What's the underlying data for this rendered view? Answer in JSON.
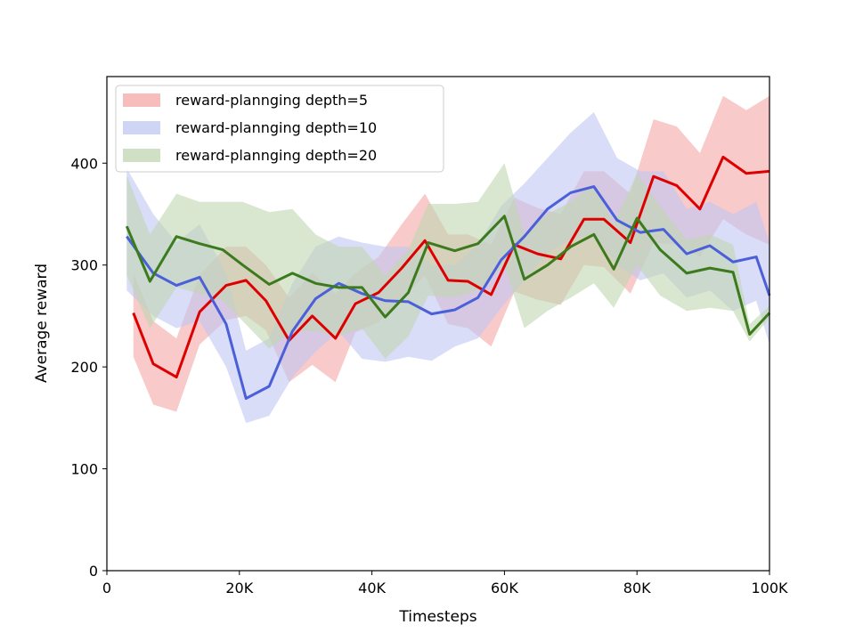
{
  "chart_data": {
    "type": "line",
    "title": "",
    "xlabel": "Timesteps",
    "ylabel": "Average reward",
    "xlim": [
      0,
      100000
    ],
    "ylim": [
      0,
      485
    ],
    "x_ticks": [
      {
        "value": 0,
        "label": "0"
      },
      {
        "value": 20000,
        "label": "20K"
      },
      {
        "value": 40000,
        "label": "40K"
      },
      {
        "value": 60000,
        "label": "60K"
      },
      {
        "value": 80000,
        "label": "80K"
      },
      {
        "value": 100000,
        "label": "100K"
      }
    ],
    "y_ticks": [
      {
        "value": 0,
        "label": "0"
      },
      {
        "value": 100,
        "label": "100"
      },
      {
        "value": 200,
        "label": "200"
      },
      {
        "value": 300,
        "label": "300"
      },
      {
        "value": 400,
        "label": "400"
      }
    ],
    "grid": false,
    "legend_position": "top-left",
    "series": [
      {
        "name": "reward-plannging depth=5",
        "color": "#dd0000",
        "band_color": "#f4a6a6",
        "x": [
          4000,
          7000,
          10500,
          14000,
          18000,
          21000,
          24000,
          27500,
          31000,
          34500,
          37500,
          41000,
          44500,
          48000,
          51500,
          54500,
          58000,
          61500,
          65000,
          68500,
          72000,
          75000,
          79000,
          82500,
          86000,
          89500,
          93000,
          96500,
          100000
        ],
        "y": [
          253,
          203,
          190,
          254,
          280,
          285,
          265,
          226,
          250,
          228,
          262,
          273,
          297,
          324,
          285,
          284,
          271,
          320,
          311,
          306,
          345,
          345,
          322,
          387,
          378,
          355,
          406,
          390,
          392
        ],
        "lower": [
          210,
          163,
          156,
          222,
          246,
          250,
          236,
          185,
          202,
          185,
          234,
          244,
          266,
          290,
          242,
          238,
          220,
          274,
          266,
          261,
          300,
          298,
          272,
          322,
          320,
          308,
          345,
          330,
          320
        ],
        "upper": [
          292,
          245,
          228,
          290,
          318,
          318,
          300,
          268,
          292,
          272,
          292,
          308,
          340,
          370,
          330,
          330,
          320,
          366,
          356,
          350,
          392,
          392,
          370,
          443,
          436,
          410,
          466,
          452,
          466
        ]
      },
      {
        "name": "reward-plannging depth=10",
        "color": "#4a5fd8",
        "band_color": "#bfc7f2",
        "x": [
          3000,
          7000,
          10500,
          14000,
          18000,
          21000,
          24500,
          28000,
          31500,
          35000,
          38500,
          42000,
          45500,
          49000,
          52500,
          56000,
          59500,
          63000,
          66500,
          70000,
          73500,
          77000,
          80500,
          84000,
          87500,
          91000,
          94500,
          98000,
          100000
        ],
        "y": [
          328,
          292,
          280,
          288,
          242,
          169,
          181,
          235,
          267,
          282,
          272,
          265,
          264,
          252,
          256,
          268,
          305,
          328,
          355,
          371,
          377,
          344,
          332,
          335,
          311,
          319,
          303,
          308,
          270
        ],
        "lower": [
          275,
          250,
          238,
          245,
          200,
          145,
          152,
          190,
          215,
          235,
          208,
          205,
          210,
          206,
          220,
          228,
          258,
          285,
          312,
          325,
          330,
          300,
          285,
          292,
          268,
          275,
          255,
          265,
          222
        ],
        "upper": [
          395,
          350,
          322,
          340,
          292,
          216,
          228,
          282,
          318,
          328,
          322,
          318,
          318,
          300,
          300,
          320,
          358,
          380,
          405,
          430,
          450,
          405,
          392,
          392,
          355,
          362,
          350,
          362,
          322
        ]
      },
      {
        "name": "reward-plannging depth=20",
        "color": "#3c7a1e",
        "band_color": "#c0d6b0",
        "x": [
          3000,
          6500,
          10500,
          14000,
          17500,
          20500,
          24500,
          28000,
          31500,
          35000,
          38500,
          42000,
          45500,
          48500,
          52500,
          56000,
          60000,
          63000,
          66500,
          70000,
          73500,
          76500,
          80000,
          83500,
          87500,
          91000,
          94500,
          97000,
          100000
        ],
        "y": [
          338,
          284,
          328,
          321,
          315,
          300,
          281,
          292,
          282,
          278,
          278,
          249,
          273,
          322,
          314,
          321,
          348,
          286,
          300,
          318,
          330,
          296,
          346,
          315,
          292,
          297,
          293,
          232,
          253
        ],
        "lower": [
          290,
          238,
          278,
          272,
          265,
          245,
          218,
          235,
          235,
          230,
          238,
          208,
          230,
          270,
          268,
          275,
          300,
          238,
          255,
          268,
          282,
          258,
          300,
          270,
          255,
          258,
          255,
          225,
          248
        ],
        "upper": [
          388,
          330,
          370,
          362,
          362,
          362,
          352,
          355,
          330,
          318,
          318,
          290,
          315,
          360,
          360,
          362,
          400,
          330,
          350,
          362,
          380,
          340,
          390,
          358,
          325,
          330,
          320,
          242,
          260
        ]
      }
    ]
  }
}
